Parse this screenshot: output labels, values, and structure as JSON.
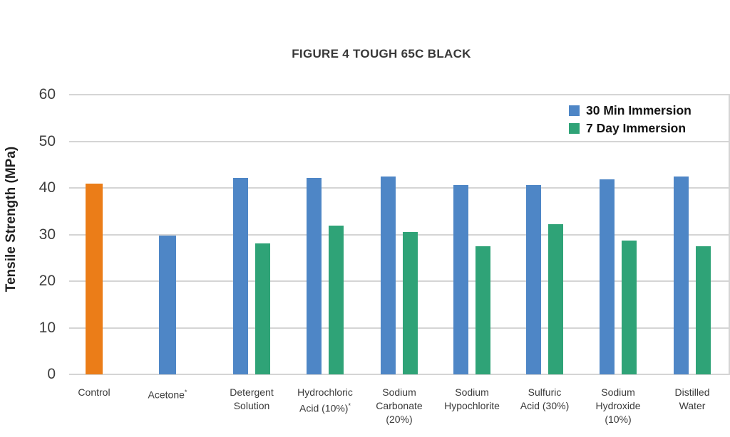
{
  "page": {
    "background": "#FFFFFF"
  },
  "chart_data": {
    "type": "bar",
    "title": "FIGURE 4 TOUGH 65C BLACK",
    "ylabel": "Tensile Strength (MPa)",
    "xlabel": "",
    "ylim": [
      0,
      60
    ],
    "yticks": [
      0,
      10,
      20,
      30,
      40,
      50,
      60
    ],
    "grid": "horizontal-only",
    "legend_position": "top-right-inside",
    "categories": [
      "Control",
      "Acetone*",
      "Detergent Solution",
      "Hydrochloric Acid (10%)*",
      "Sodium Carbonate (20%)",
      "Sodium Hypochlorite",
      "Sulfuric Acid (30%)",
      "Sodium Hydroxide (10%)",
      "Distilled Water"
    ],
    "categories_display": [
      [
        "Control"
      ],
      [
        "Acetone*"
      ],
      [
        "Detergent",
        "Solution"
      ],
      [
        "Hydrochloric",
        "Acid (10%)*"
      ],
      [
        "Sodium",
        "Carbonate",
        "(20%)"
      ],
      [
        "Sodium",
        "Hypochlorite"
      ],
      [
        "Sulfuric",
        "Acid (30%)"
      ],
      [
        "Sodium",
        "Hydroxide",
        "(10%)"
      ],
      [
        "Distilled",
        "Water"
      ]
    ],
    "series": [
      {
        "name": "30 Min Immersion",
        "color": "#4E86C6",
        "values": [
          40.9,
          29.7,
          42.1,
          42.2,
          42.4,
          40.6,
          40.6,
          41.8,
          42.5
        ]
      },
      {
        "name": "7 Day Immersion",
        "color": "#2FA377",
        "values": [
          null,
          null,
          28.1,
          31.9,
          30.6,
          27.5,
          32.2,
          28.7,
          27.5
        ]
      }
    ],
    "bar_color_overrides": [
      {
        "category_index": 0,
        "series_index": 0,
        "color": "#EB7D18",
        "note": "Control bar shown in orange"
      }
    ],
    "colors": {
      "gridline": "#D5D5D5",
      "title_text": "#383838",
      "axis_text": "#3D3D3D",
      "x_label_text": "#3A3A3A",
      "legend_text": "#111111",
      "background": "#FFFFFF"
    }
  }
}
